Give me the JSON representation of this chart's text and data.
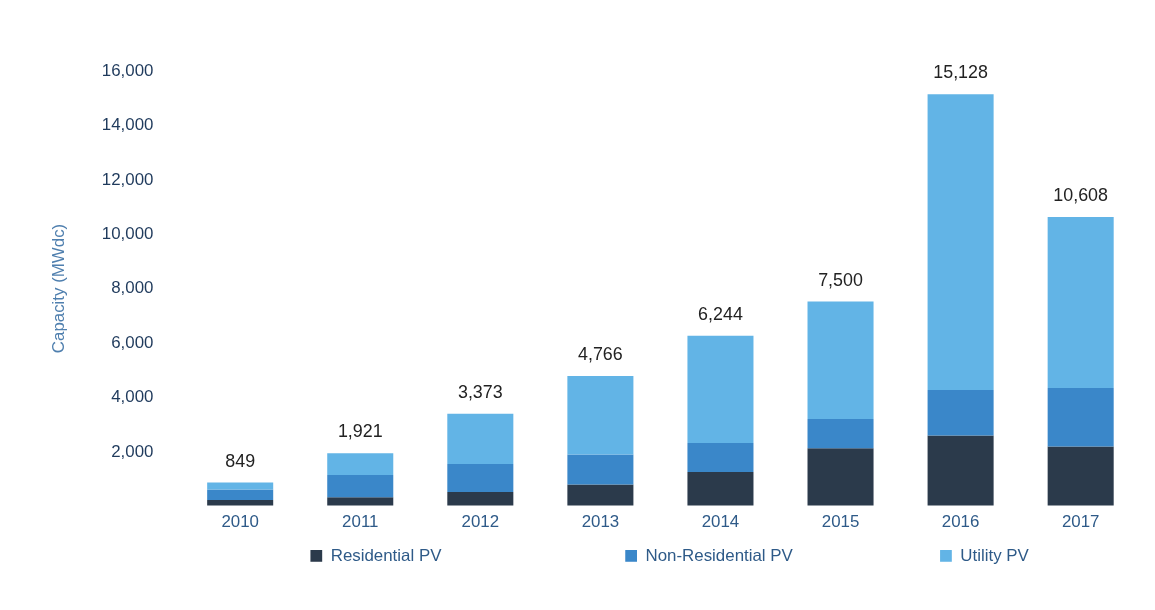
{
  "chart_data": {
    "type": "bar",
    "ylabel": "Capacity (MWdc)",
    "categories": [
      "2010",
      "2011",
      "2012",
      "2013",
      "2014",
      "2015",
      "2016",
      "2017"
    ],
    "stacked": true,
    "legend": "bottom",
    "ylim": [
      0,
      16000
    ],
    "yticks": [
      {
        "value": 2000,
        "label": "2,000"
      },
      {
        "value": 4000,
        "label": "4,000"
      },
      {
        "value": 6000,
        "label": "6,000"
      },
      {
        "value": 8000,
        "label": "8,000"
      },
      {
        "value": 10000,
        "label": "10,000"
      },
      {
        "value": 12000,
        "label": "12,000"
      },
      {
        "value": 14000,
        "label": "14,000"
      },
      {
        "value": 16000,
        "label": "16,000"
      }
    ],
    "totals": [
      "849",
      "1,921",
      "3,373",
      "4,766",
      "6,244",
      "7,500",
      "15,128",
      "10,608"
    ],
    "series": [
      {
        "name": "Residential PV",
        "color": "#2b3a4b",
        "values": [
          200,
          300,
          500,
          770,
          1230,
          2110,
          2570,
          2170
        ]
      },
      {
        "name": "Non-Residential PV",
        "color": "#3a87c9",
        "values": [
          390,
          820,
          1030,
          1110,
          1070,
          1070,
          1680,
          2150
        ]
      },
      {
        "name": "Utility PV",
        "color": "#62b4e6",
        "values": [
          259,
          801,
          1843,
          2886,
          3944,
          4320,
          10878,
          6288
        ]
      }
    ]
  }
}
